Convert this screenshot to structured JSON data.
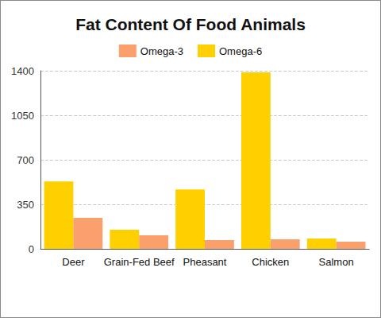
{
  "chart_data": {
    "type": "bar",
    "title": "Fat Content Of Food Animals",
    "categories": [
      "Deer",
      "Grain-Fed Beef",
      "Pheasant",
      "Chicken",
      "Salmon"
    ],
    "series": [
      {
        "name": "Omega-3",
        "color": "#f9a06c",
        "values": [
          243,
          106,
          68,
          75,
          56
        ]
      },
      {
        "name": "Omega-6",
        "color": "#ffd000",
        "values": [
          529,
          150,
          467,
          1388,
          81
        ]
      }
    ],
    "ylim": [
      0,
      1400
    ],
    "yticks": [
      0,
      350,
      700,
      1050,
      1400
    ],
    "grid": true,
    "legend": "top"
  }
}
